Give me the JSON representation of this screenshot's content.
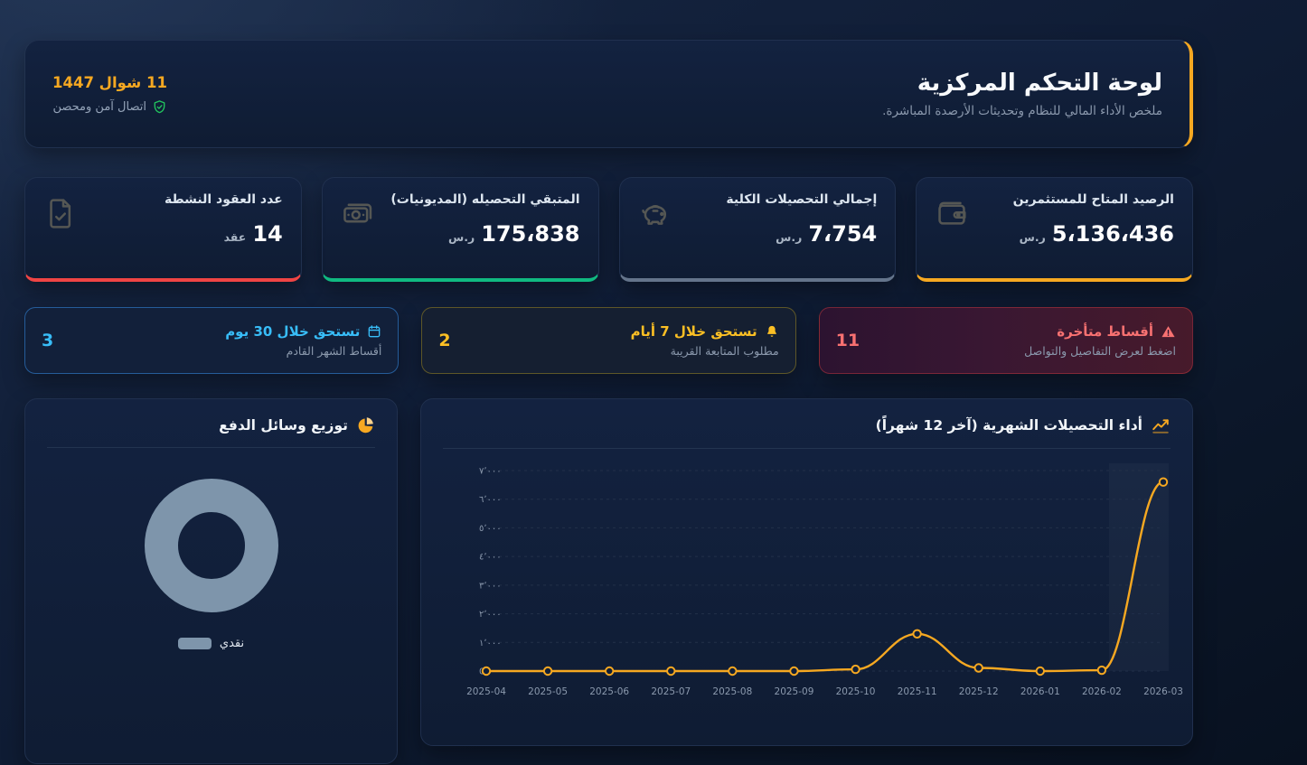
{
  "header": {
    "title": "لوحة التحكم المركزية",
    "subtitle": "ملخص الأداء المالي للنظام وتحديثات الأرصدة المباشرة.",
    "date": "11 شوال 1447",
    "connection_status": "اتصال آمن ومحصن",
    "accent_color": "#f6a821",
    "connection_color": "#22c55e"
  },
  "stats": [
    {
      "title": "الرصيد المتاح للمستثمرين",
      "value": "5،136،436",
      "unit": "ر.س",
      "accent": "#f6a821",
      "icon": "wallet-icon"
    },
    {
      "title": "إجمالي التحصيلات الكلية",
      "value": "7،754",
      "unit": "ر.س",
      "accent": "#64748b",
      "icon": "piggy-bank-icon"
    },
    {
      "title": "المتبقي التحصيله (المديونيات)",
      "value": "175،838",
      "unit": "ر.س",
      "accent": "#10b981",
      "icon": "banknotes-icon"
    },
    {
      "title": "عدد العقود النشطة",
      "value": "14",
      "unit": "عقد",
      "accent": "#ef4444",
      "icon": "contract-icon"
    }
  ],
  "alerts": [
    {
      "title": "أقساط متأخرة",
      "subtitle": "اضغط لعرض التفاصيل والتواصل",
      "count": "11",
      "color": "#f87171",
      "icon": "warning-triangle-icon"
    },
    {
      "title": "تستحق خلال 7 أيام",
      "subtitle": "مطلوب المتابعة القريبة",
      "count": "2",
      "color": "#fbbf24",
      "icon": "bell-icon"
    },
    {
      "title": "تستحق خلال 30 يوم",
      "subtitle": "أقساط الشهر القادم",
      "count": "3",
      "color": "#38bdf8",
      "icon": "calendar-icon"
    }
  ],
  "chart_data": [
    {
      "type": "pie",
      "title": "توزيع وسائل الدفع",
      "slices": [
        {
          "label": "نقدي",
          "value": 100
        }
      ],
      "colors": [
        "#7e95ab"
      ],
      "legend_position": "bottom"
    },
    {
      "type": "line",
      "title": "أداء التحصيلات الشهرية (آخر 12 شهراً)",
      "x": [
        "2025-04",
        "2025-05",
        "2025-06",
        "2025-07",
        "2025-08",
        "2025-09",
        "2025-10",
        "2025-11",
        "2025-12",
        "2026-01",
        "2026-02",
        "2026-03"
      ],
      "values": [
        0,
        0,
        0,
        0,
        0,
        0,
        60,
        1300,
        110,
        0,
        30,
        6600
      ],
      "ylim": [
        0,
        7000
      ],
      "y_tick_labels": [
        "0",
        "١٬٠٠٠",
        "٢٬٠٠٠",
        "٣٬٠٠٠",
        "٤٬٠٠٠",
        "٥٬٠٠٠",
        "٦٬٠٠٠",
        "٧٬٠٠٠"
      ],
      "grid": true,
      "legend_position": "none",
      "line_color": "#f6a821"
    }
  ]
}
